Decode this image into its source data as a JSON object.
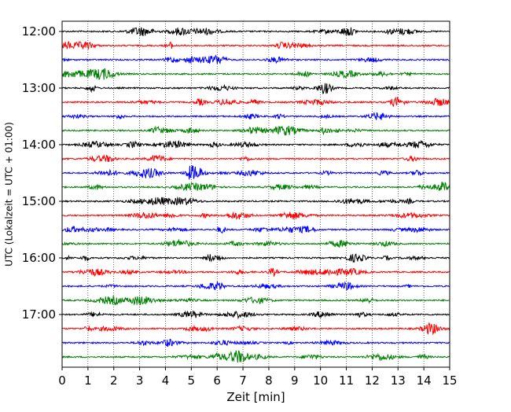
{
  "chart_data": {
    "type": "line",
    "subtype": "seismogram-helicorder",
    "xlabel": "Zeit  [min]",
    "ylabel": "UTC (Lokalzeit = UTC + 01:00)",
    "xlim": [
      0,
      15
    ],
    "xticks": [
      0,
      1,
      2,
      3,
      4,
      5,
      6,
      7,
      8,
      9,
      10,
      11,
      12,
      13,
      14,
      15
    ],
    "xtick_labels": [
      "0",
      "1",
      "2",
      "3",
      "4",
      "5",
      "6",
      "7",
      "8",
      "9",
      "10",
      "11",
      "12",
      "13",
      "14",
      "15"
    ],
    "vertical_grid": true,
    "row_interval_minutes": 15,
    "row_start": "12:00",
    "row_count": 24,
    "row_colors": [
      "#000000",
      "#ff0000",
      "#0000ff",
      "#008000"
    ],
    "yticks": [
      {
        "row": 0,
        "label": "12:00"
      },
      {
        "row": 4,
        "label": "13:00"
      },
      {
        "row": 8,
        "label": "14:00"
      },
      {
        "row": 12,
        "label": "15:00"
      },
      {
        "row": 16,
        "label": "16:00"
      },
      {
        "row": 20,
        "label": "17:00"
      }
    ]
  }
}
